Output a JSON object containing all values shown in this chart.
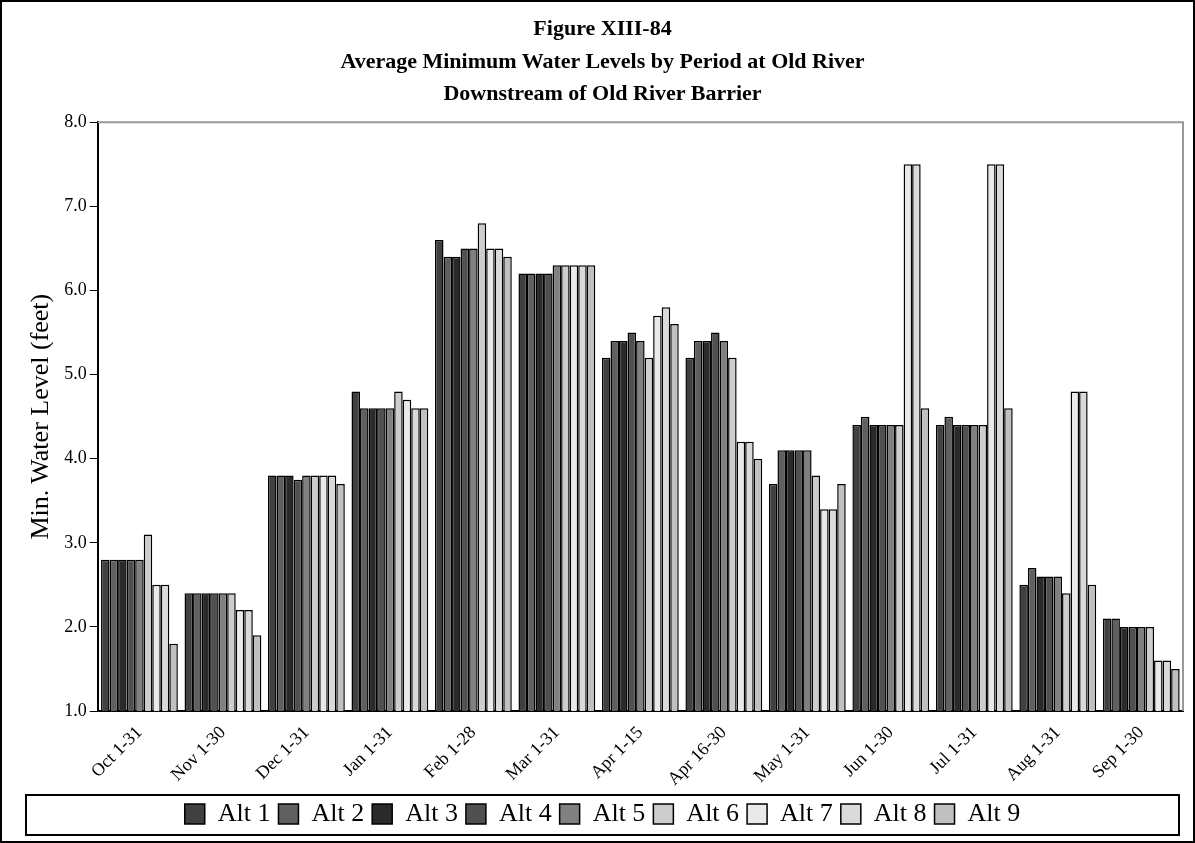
{
  "chart_data": {
    "type": "bar",
    "title": "Figure XIII-84",
    "subtitle": "Average Minimum Water Levels by Period at Old River\nDownstream of Old River Barrier",
    "ylabel": "Min. Water Level (feet)",
    "categories": [
      "Oct 1-31",
      "Nov 1-30",
      "Dec 1-31",
      "Jan 1-31",
      "Feb 1-28",
      "Mar 1-31",
      "Apr 1-15",
      "Apr 16-30",
      "May 1-31",
      "Jun 1-30",
      "Jul 1-31",
      "Aug 1-31",
      "Sep 1-30"
    ],
    "series": [
      {
        "name": "Alt 1",
        "color": "#404040",
        "values": [
          2.8,
          2.4,
          3.8,
          4.8,
          6.6,
          6.2,
          5.2,
          5.2,
          3.7,
          4.4,
          4.4,
          2.5,
          2.1
        ]
      },
      {
        "name": "Alt 2",
        "color": "#606060",
        "values": [
          2.8,
          2.4,
          3.8,
          4.6,
          6.4,
          6.2,
          5.4,
          5.4,
          4.1,
          4.5,
          4.5,
          2.7,
          2.1
        ]
      },
      {
        "name": "Alt 3",
        "color": "#2a2a2a",
        "values": [
          2.8,
          2.4,
          3.8,
          4.6,
          6.4,
          6.2,
          5.4,
          5.4,
          4.1,
          4.4,
          4.4,
          2.6,
          2.0
        ]
      },
      {
        "name": "Alt 4",
        "color": "#505050",
        "values": [
          2.8,
          2.4,
          3.75,
          4.6,
          6.5,
          6.2,
          5.5,
          5.5,
          4.1,
          4.4,
          4.4,
          2.6,
          2.0
        ]
      },
      {
        "name": "Alt 5",
        "color": "#808080",
        "values": [
          2.8,
          2.4,
          3.8,
          4.6,
          6.5,
          6.3,
          5.4,
          5.4,
          4.1,
          4.4,
          4.4,
          2.6,
          2.0
        ]
      },
      {
        "name": "Alt 6",
        "color": "#cdcdcd",
        "values": [
          3.1,
          2.4,
          3.8,
          4.8,
          6.8,
          6.3,
          5.2,
          5.2,
          3.8,
          4.4,
          4.4,
          2.4,
          2.0
        ]
      },
      {
        "name": "Alt 7",
        "color": "#e9e9e9",
        "values": [
          2.5,
          2.2,
          3.8,
          4.7,
          6.5,
          6.3,
          5.7,
          4.2,
          3.4,
          7.5,
          7.5,
          4.8,
          1.6
        ]
      },
      {
        "name": "Alt 8",
        "color": "#dadada",
        "values": [
          2.5,
          2.2,
          3.8,
          4.6,
          6.5,
          6.3,
          5.8,
          4.2,
          3.4,
          7.5,
          7.5,
          4.8,
          1.6
        ]
      },
      {
        "name": "Alt 9",
        "color": "#c0c0c0",
        "values": [
          1.8,
          1.9,
          3.7,
          4.6,
          6.4,
          6.3,
          5.6,
          4.0,
          3.7,
          4.6,
          4.6,
          2.5,
          1.5
        ]
      }
    ],
    "ylim": [
      1.0,
      8.0
    ],
    "yticks": [
      {
        "value": 1,
        "label": "1.0"
      },
      {
        "value": 2,
        "label": "2.0"
      },
      {
        "value": 3,
        "label": "3.0"
      },
      {
        "value": 4,
        "label": "4.0"
      },
      {
        "value": 5,
        "label": "5.0"
      },
      {
        "value": 6,
        "label": "6.0"
      },
      {
        "value": 7,
        "label": "7.0"
      },
      {
        "value": 8,
        "label": "8.0"
      }
    ],
    "grid": false,
    "legend": "bottom"
  }
}
